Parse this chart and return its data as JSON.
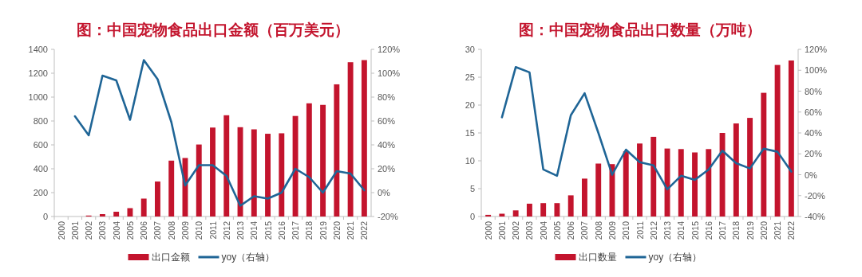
{
  "chart_data": [
    {
      "type": "bar",
      "title": "图：中国宠物食品出口金额（百万美元）",
      "categories": [
        "2000",
        "2001",
        "2002",
        "2003",
        "2004",
        "2005",
        "2006",
        "2007",
        "2008",
        "2009",
        "2010",
        "2011",
        "2012",
        "2013",
        "2014",
        "2015",
        "2016",
        "2017",
        "2018",
        "2019",
        "2020",
        "2021",
        "2022"
      ],
      "series": [
        {
          "name": "出口金额",
          "color": "#c3142d",
          "values": [
            null,
            null,
            8,
            20,
            40,
            70,
            150,
            293,
            468,
            490,
            603,
            745,
            848,
            748,
            730,
            693,
            697,
            842,
            948,
            935,
            1107,
            1292,
            1310
          ]
        },
        {
          "name": "yoy（右轴）",
          "type": "line",
          "axis": "y2",
          "color": "#1f6596",
          "values": [
            null,
            64,
            48,
            98,
            94,
            61,
            111,
            95,
            59,
            6,
            23,
            23,
            14,
            -11,
            -3,
            -5,
            0,
            20,
            13,
            0,
            18,
            16,
            2
          ]
        }
      ],
      "ylim": [
        0,
        1400
      ],
      "yticks": [
        0,
        200,
        400,
        600,
        800,
        1000,
        1200,
        1400
      ],
      "y2lim": [
        -20,
        120
      ],
      "y2ticks": [
        {
          "value": -20,
          "label": "-20%"
        },
        {
          "value": 0,
          "label": "0%"
        },
        {
          "value": 20,
          "label": "20%"
        },
        {
          "value": 40,
          "label": "40%"
        },
        {
          "value": 60,
          "label": "60%"
        },
        {
          "value": 80,
          "label": "80%"
        },
        {
          "value": 100,
          "label": "100%"
        },
        {
          "value": 120,
          "label": "120%"
        }
      ],
      "legend": "bottom"
    },
    {
      "type": "bar",
      "title": "图：中国宠物食品出口数量（万吨）",
      "categories": [
        "2000",
        "2001",
        "2002",
        "2003",
        "2004",
        "2005",
        "2006",
        "2007",
        "2008",
        "2009",
        "2010",
        "2011",
        "2012",
        "2013",
        "2014",
        "2015",
        "2016",
        "2017",
        "2018",
        "2019",
        "2020",
        "2021",
        "2022"
      ],
      "series": [
        {
          "name": "出口数量",
          "color": "#c3142d",
          "values": [
            0.3,
            0.5,
            1.1,
            2.3,
            2.4,
            2.4,
            3.8,
            6.8,
            9.5,
            9.4,
            11.7,
            13.1,
            14.3,
            12.2,
            12.1,
            11.5,
            12.1,
            15.0,
            16.7,
            17.7,
            22.2,
            27.2,
            28.0
          ]
        },
        {
          "name": "yoy（右轴）",
          "type": "line",
          "axis": "y2",
          "color": "#1f6596",
          "values": [
            null,
            55,
            103,
            98,
            5,
            -1,
            57,
            78,
            40,
            0,
            24,
            12,
            9,
            -14,
            -1,
            -5,
            5,
            23,
            11,
            6,
            25,
            22,
            3
          ]
        }
      ],
      "ylim": [
        0,
        30
      ],
      "yticks": [
        0,
        5,
        10,
        15,
        20,
        25,
        30
      ],
      "y2lim": [
        -40,
        120
      ],
      "y2ticks": [
        {
          "value": -40,
          "label": "-40%"
        },
        {
          "value": -20,
          "label": "-20%"
        },
        {
          "value": 0,
          "label": "0%"
        },
        {
          "value": 20,
          "label": "20%"
        },
        {
          "value": 40,
          "label": "40%"
        },
        {
          "value": 60,
          "label": "60%"
        },
        {
          "value": 80,
          "label": "80%"
        },
        {
          "value": 100,
          "label": "100%"
        },
        {
          "value": 120,
          "label": "120%"
        }
      ],
      "legend": "bottom"
    }
  ]
}
